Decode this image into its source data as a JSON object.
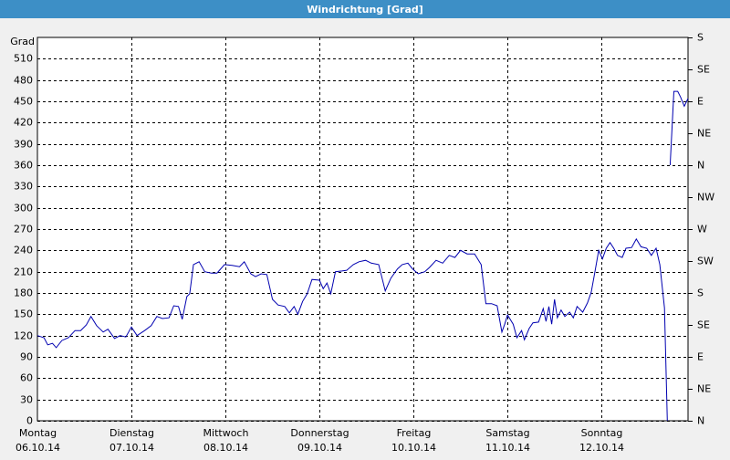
{
  "chart_data": {
    "type": "line",
    "title": "Windrichtung [Grad]",
    "y_label": "Grad",
    "xlim": [
      0,
      6.92
    ],
    "xticks": [
      {
        "value": 0,
        "label": "Montag"
      },
      {
        "value": 1,
        "label": "Dienstag"
      },
      {
        "value": 2,
        "label": "Mittwoch"
      },
      {
        "value": 3,
        "label": "Donnerstag"
      },
      {
        "value": 4,
        "label": "Freitag"
      },
      {
        "value": 5,
        "label": "Samstag"
      },
      {
        "value": 6,
        "label": "Sonntag"
      }
    ],
    "xtick_dates": [
      "06.10.14",
      "07.10.14",
      "08.10.14",
      "09.10.14",
      "10.10.14",
      "11.10.14",
      "12.10.14"
    ],
    "ylim": [
      0,
      540
    ],
    "yticks": [
      0,
      30,
      60,
      90,
      120,
      150,
      180,
      210,
      240,
      270,
      300,
      330,
      360,
      390,
      420,
      450,
      480,
      510
    ],
    "y2lim": [
      0,
      540
    ],
    "y2ticks": [
      {
        "value": 0,
        "label": "N"
      },
      {
        "value": 45,
        "label": "NE"
      },
      {
        "value": 90,
        "label": "E"
      },
      {
        "value": 135,
        "label": "SE"
      },
      {
        "value": 180,
        "label": "S"
      },
      {
        "value": 225,
        "label": "SW"
      },
      {
        "value": 270,
        "label": "W"
      },
      {
        "value": 315,
        "label": "NW"
      },
      {
        "value": 360,
        "label": "N"
      },
      {
        "value": 405,
        "label": "NE"
      },
      {
        "value": 450,
        "label": "E"
      },
      {
        "value": 495,
        "label": "SE"
      },
      {
        "value": 540,
        "label": "S"
      }
    ],
    "grid": true,
    "series": [
      {
        "name": "Windrichtung",
        "color": "#0000b0",
        "x": [
          0,
          0.07,
          0.11,
          0.16,
          0.2,
          0.26,
          0.33,
          0.4,
          0.46,
          0.52,
          0.57,
          0.63,
          0.7,
          0.75,
          0.82,
          0.88,
          0.94,
          1,
          1.06,
          1.14,
          1.21,
          1.27,
          1.33,
          1.4,
          1.45,
          1.5,
          1.54,
          1.59,
          1.62,
          1.66,
          1.72,
          1.78,
          1.85,
          1.91,
          1.99,
          2.07,
          2.15,
          2.2,
          2.27,
          2.32,
          2.38,
          2.44,
          2.5,
          2.56,
          2.63,
          2.68,
          2.73,
          2.77,
          2.82,
          2.87,
          2.92,
          3,
          3.04,
          3.08,
          3.12,
          3.17,
          3.24,
          3.29,
          3.36,
          3.42,
          3.49,
          3.55,
          3.63,
          3.7,
          3.76,
          3.83,
          3.88,
          3.94,
          3.99,
          4.05,
          4.12,
          4.17,
          4.24,
          4.31,
          4.38,
          4.44,
          4.5,
          4.57,
          4.65,
          4.72,
          4.77,
          4.83,
          4.89,
          4.94,
          4.97,
          5,
          5.06,
          5.1,
          5.15,
          5.18,
          5.23,
          5.27,
          5.33,
          5.38,
          5.41,
          5.44,
          5.47,
          5.5,
          5.53,
          5.57,
          5.61,
          5.66,
          5.7,
          5.74,
          5.8,
          5.85,
          5.89,
          5.93,
          5.97,
          6.01,
          6.05,
          6.09,
          6.13,
          6.17,
          6.22,
          6.26,
          6.32,
          6.37,
          6.42,
          6.48,
          6.53,
          6.58,
          6.62,
          6.67,
          6.7,
          6.71,
          6.73,
          6.77,
          6.81,
          6.84,
          6.88,
          6.92
        ],
        "values": [
          120,
          117,
          107,
          109,
          103,
          113,
          117,
          127,
          127,
          135,
          147,
          134,
          125,
          129,
          116,
          120,
          118,
          132,
          120,
          127,
          134,
          147,
          144,
          145,
          162,
          161,
          143,
          175,
          179,
          220,
          224,
          210,
          208,
          208,
          220,
          219,
          217,
          224,
          207,
          203,
          207,
          206,
          171,
          163,
          161,
          152,
          161,
          150,
          168,
          179,
          199,
          198,
          186,
          194,
          179,
          210,
          211,
          212,
          220,
          224,
          226,
          222,
          220,
          183,
          201,
          214,
          220,
          222,
          214,
          207,
          210,
          216,
          226,
          222,
          233,
          230,
          240,
          235,
          235,
          220,
          165,
          165,
          162,
          125,
          136,
          149,
          136,
          117,
          127,
          114,
          130,
          138,
          139,
          158,
          140,
          161,
          136,
          171,
          145,
          156,
          147,
          153,
          145,
          161,
          153,
          166,
          181,
          210,
          240,
          228,
          243,
          251,
          243,
          233,
          230,
          243,
          244,
          256,
          245,
          243,
          233,
          243,
          220,
          159,
          0,
          null,
          360,
          464,
          464,
          456,
          443,
          454
        ]
      }
    ]
  }
}
